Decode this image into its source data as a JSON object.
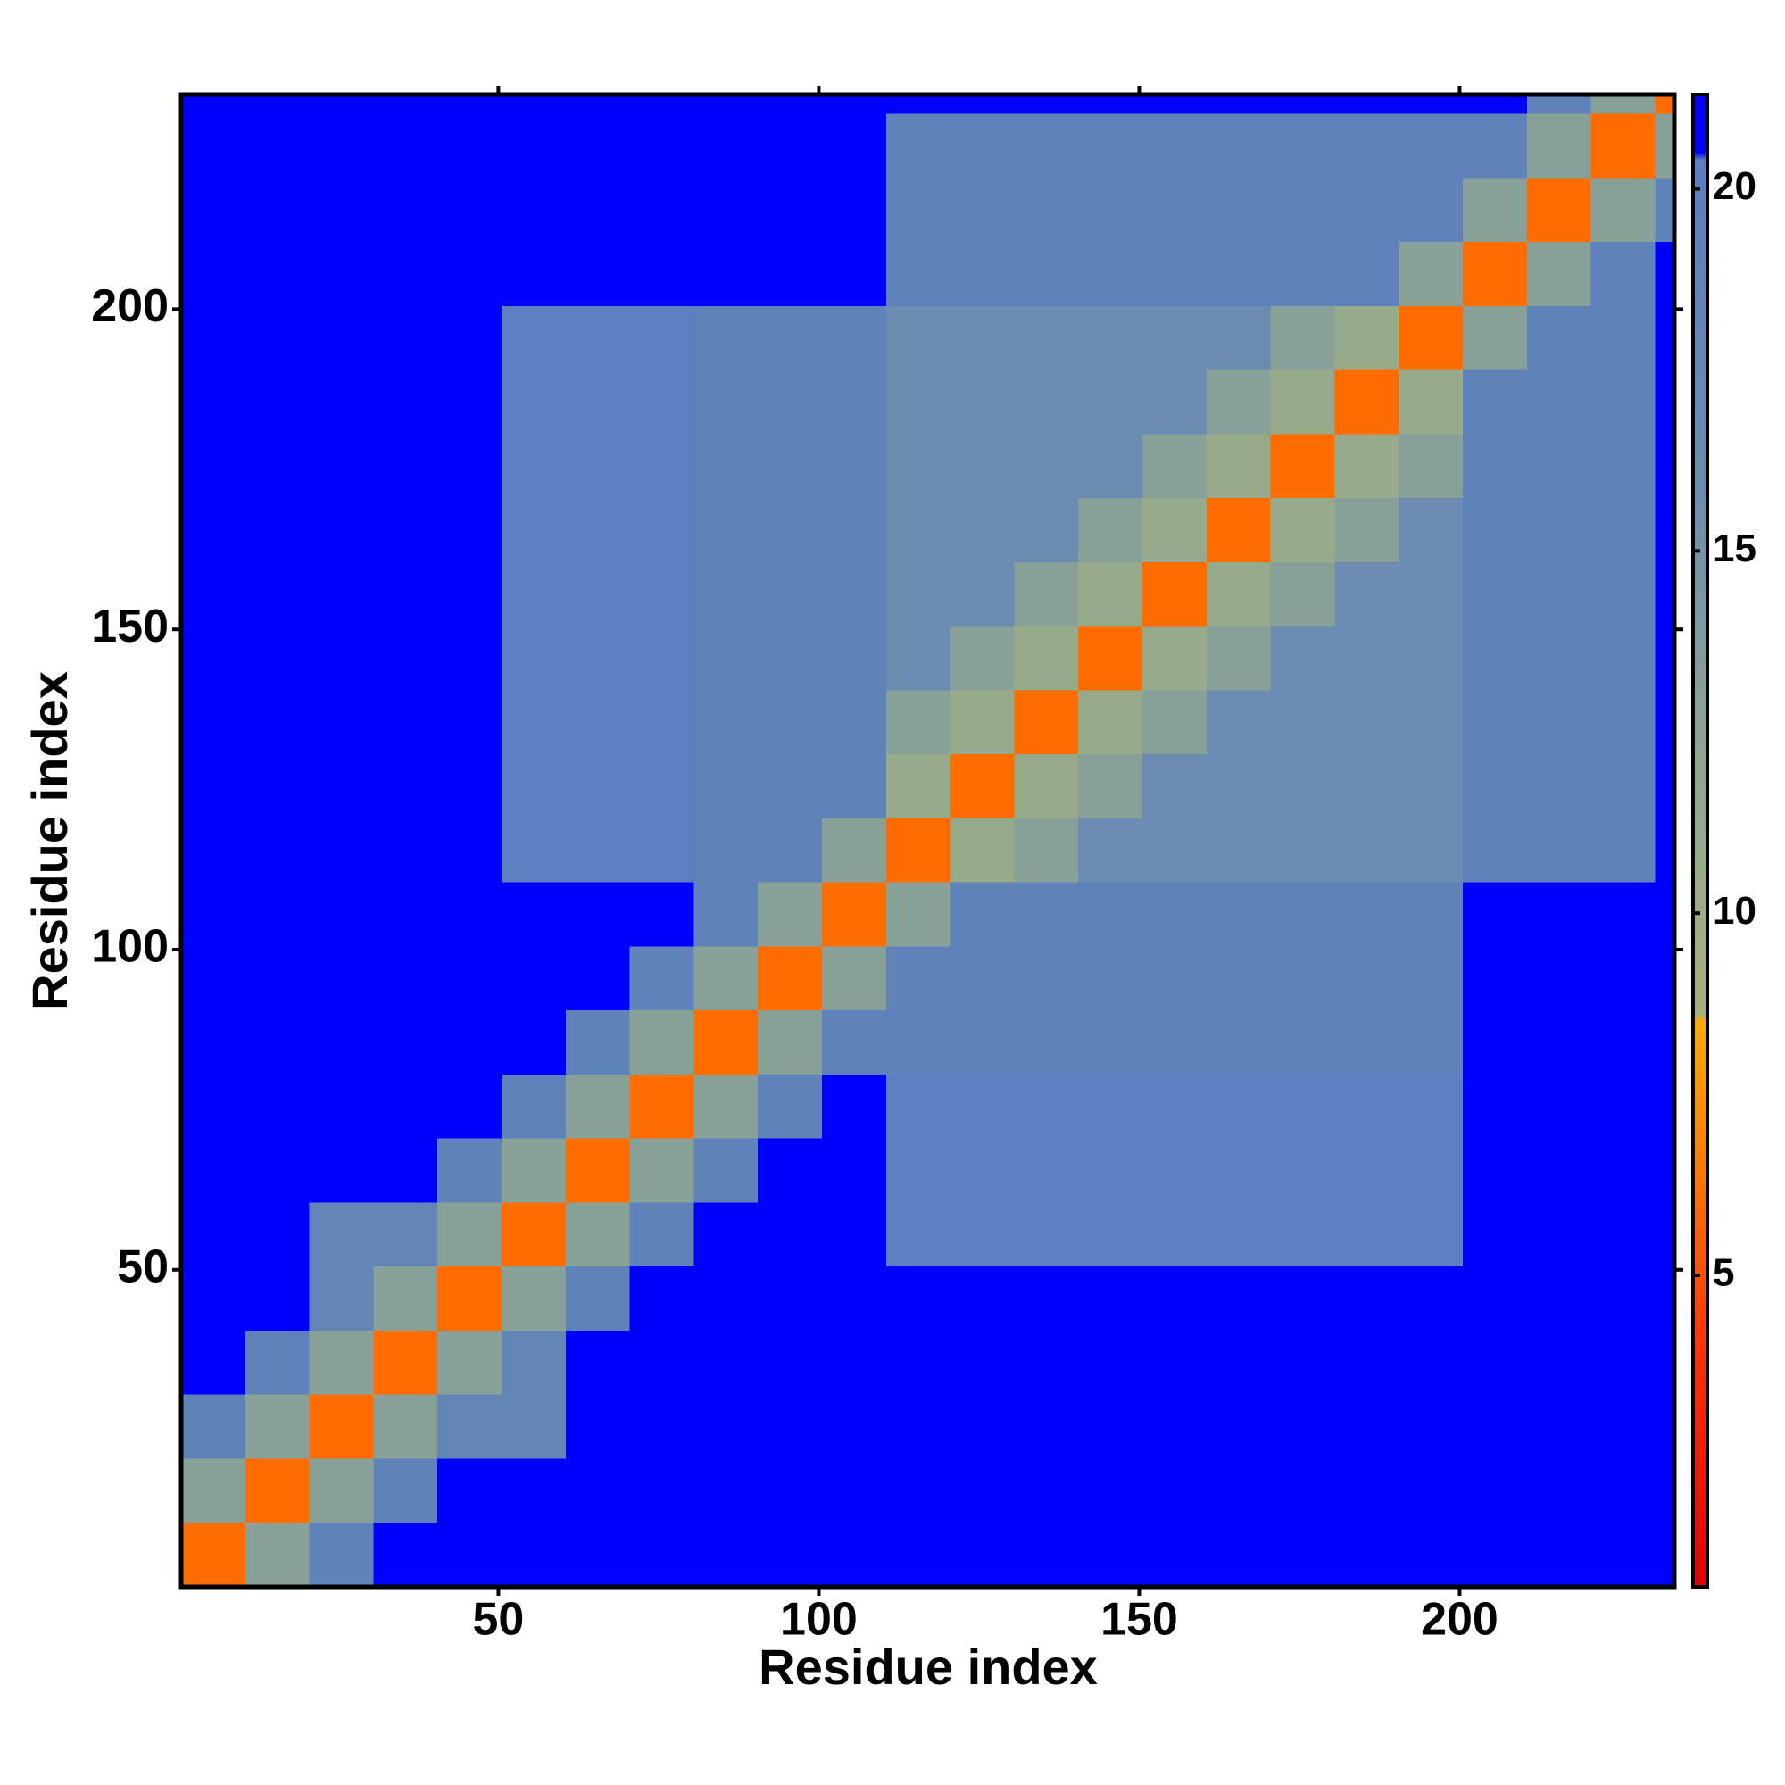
{
  "chart_data": {
    "type": "heatmap",
    "xlabel": "Residue index",
    "ylabel": "Residue index",
    "x_bins": [
      0.5,
      10.5,
      20.5,
      30.5,
      40.5,
      50.5,
      60.5,
      70.5,
      80.5,
      90.5,
      100.5,
      110.5,
      120.5,
      130.5,
      140.5,
      150.5,
      160.5,
      170.5,
      180.5,
      190.5,
      200.5,
      210.5,
      220.5,
      230.5,
      233.5
    ],
    "y_bins": [
      0.5,
      10.5,
      20.5,
      30.5,
      40.5,
      50.5,
      60.5,
      70.5,
      80.5,
      90.5,
      100.5,
      110.5,
      120.5,
      130.5,
      140.5,
      150.5,
      160.5,
      170.5,
      180.5,
      190.5,
      200.5,
      210.5,
      220.5,
      230.5,
      233.5
    ],
    "values": [
      [
        6,
        13,
        19,
        21,
        21,
        21,
        21,
        21,
        21,
        21,
        21,
        21,
        21,
        21,
        21,
        21,
        21,
        21,
        21,
        21,
        21,
        21,
        21,
        21
      ],
      [
        13,
        6,
        13,
        19,
        21,
        21,
        21,
        21,
        21,
        21,
        21,
        21,
        21,
        21,
        21,
        21,
        21,
        21,
        21,
        21,
        21,
        21,
        21,
        21
      ],
      [
        19,
        13,
        6,
        13,
        18,
        18,
        21,
        21,
        21,
        21,
        21,
        21,
        21,
        21,
        21,
        21,
        21,
        21,
        21,
        21,
        21,
        21,
        21,
        21
      ],
      [
        21,
        19,
        13,
        6,
        13,
        18,
        21,
        21,
        21,
        21,
        21,
        21,
        21,
        21,
        21,
        21,
        21,
        21,
        21,
        21,
        21,
        21,
        21,
        21
      ],
      [
        21,
        21,
        18,
        13,
        6,
        13,
        19,
        21,
        21,
        21,
        21,
        21,
        21,
        21,
        21,
        21,
        21,
        21,
        21,
        21,
        21,
        21,
        21,
        21
      ],
      [
        21,
        21,
        18,
        18,
        13,
        6,
        13,
        19,
        21,
        21,
        21,
        20,
        20,
        20,
        20,
        20,
        20,
        20,
        20,
        20,
        21,
        21,
        21,
        21
      ],
      [
        21,
        21,
        21,
        21,
        19,
        13,
        6,
        13,
        19,
        21,
        21,
        20,
        20,
        20,
        20,
        20,
        20,
        20,
        20,
        20,
        21,
        21,
        21,
        21
      ],
      [
        21,
        21,
        21,
        21,
        21,
        19,
        13,
        6,
        13,
        19,
        21,
        20,
        20,
        20,
        20,
        20,
        20,
        20,
        20,
        20,
        21,
        21,
        21,
        21
      ],
      [
        21,
        21,
        21,
        21,
        21,
        21,
        19,
        13,
        6,
        13,
        19,
        19,
        19,
        19,
        19,
        19,
        19,
        19,
        19,
        19,
        21,
        21,
        21,
        21
      ],
      [
        21,
        21,
        21,
        21,
        21,
        21,
        21,
        19,
        13,
        6,
        13,
        19,
        19,
        19,
        19,
        19,
        19,
        19,
        19,
        19,
        21,
        21,
        21,
        21
      ],
      [
        21,
        21,
        21,
        21,
        21,
        21,
        21,
        21,
        19,
        13,
        6,
        13,
        19,
        19,
        19,
        19,
        19,
        19,
        19,
        19,
        21,
        21,
        21,
        21
      ],
      [
        21,
        21,
        21,
        21,
        21,
        20,
        20,
        20,
        19,
        19,
        13,
        6,
        11,
        13,
        16,
        16,
        16,
        16,
        16,
        16,
        19,
        19,
        19,
        21
      ],
      [
        21,
        21,
        21,
        21,
        21,
        20,
        20,
        20,
        19,
        19,
        19,
        11,
        6,
        11,
        13,
        16,
        16,
        16,
        16,
        16,
        19,
        19,
        19,
        21
      ],
      [
        21,
        21,
        21,
        21,
        21,
        20,
        20,
        20,
        19,
        19,
        19,
        13,
        11,
        6,
        11,
        13,
        16,
        16,
        16,
        16,
        19,
        19,
        19,
        21
      ],
      [
        21,
        21,
        21,
        21,
        21,
        20,
        20,
        20,
        19,
        19,
        19,
        16,
        13,
        11,
        6,
        11,
        13,
        16,
        16,
        16,
        19,
        19,
        19,
        21
      ],
      [
        21,
        21,
        21,
        21,
        21,
        20,
        20,
        20,
        19,
        19,
        19,
        16,
        16,
        13,
        11,
        6,
        11,
        13,
        16,
        16,
        19,
        19,
        19,
        21
      ],
      [
        21,
        21,
        21,
        21,
        21,
        20,
        20,
        20,
        19,
        19,
        19,
        16,
        16,
        16,
        13,
        11,
        6,
        11,
        13,
        16,
        19,
        19,
        19,
        21
      ],
      [
        21,
        21,
        21,
        21,
        21,
        20,
        20,
        20,
        19,
        19,
        19,
        16,
        16,
        16,
        16,
        13,
        11,
        6,
        11,
        13,
        19,
        19,
        19,
        21
      ],
      [
        21,
        21,
        21,
        21,
        21,
        20,
        20,
        20,
        19,
        19,
        19,
        16,
        16,
        16,
        16,
        16,
        13,
        11,
        6,
        11,
        19,
        19,
        19,
        21
      ],
      [
        21,
        21,
        21,
        21,
        21,
        20,
        20,
        20,
        19,
        19,
        19,
        16,
        16,
        16,
        16,
        16,
        16,
        13,
        11,
        6,
        13,
        19,
        19,
        21
      ],
      [
        21,
        21,
        21,
        21,
        21,
        21,
        21,
        21,
        21,
        21,
        21,
        19,
        19,
        19,
        19,
        19,
        19,
        19,
        19,
        13,
        6,
        13,
        19,
        21
      ],
      [
        21,
        21,
        21,
        21,
        21,
        21,
        21,
        21,
        21,
        21,
        21,
        19,
        19,
        19,
        19,
        19,
        19,
        19,
        19,
        19,
        13,
        6,
        13,
        19
      ],
      [
        21,
        21,
        21,
        21,
        21,
        21,
        21,
        21,
        21,
        21,
        21,
        19,
        19,
        19,
        19,
        19,
        19,
        19,
        19,
        19,
        19,
        13,
        6,
        13
      ],
      [
        21,
        21,
        21,
        21,
        21,
        21,
        21,
        21,
        21,
        21,
        21,
        21,
        21,
        21,
        21,
        21,
        21,
        21,
        21,
        21,
        21,
        19,
        13,
        6
      ]
    ],
    "xlim": [
      0.5,
      233.5
    ],
    "ylim": [
      0.5,
      233.5
    ],
    "xticks": [
      50,
      100,
      150,
      200
    ],
    "yticks": [
      50,
      100,
      150,
      200
    ],
    "colorbar": {
      "lim": [
        0.7,
        21.3
      ],
      "ticks": [
        5,
        10,
        15,
        20
      ],
      "stops": [
        {
          "value": 0.7,
          "color": "#e00000"
        },
        {
          "value": 4,
          "color": "#ff3300"
        },
        {
          "value": 7,
          "color": "#ff8800"
        },
        {
          "value": 8.5,
          "color": "#ffaa00"
        },
        {
          "value": 8.6,
          "color": "#a8b07a"
        },
        {
          "value": 12,
          "color": "#90a890"
        },
        {
          "value": 16,
          "color": "#6a8cb0"
        },
        {
          "value": 20.4,
          "color": "#5a7ec0"
        },
        {
          "value": 20.5,
          "color": "#0000ff"
        },
        {
          "value": 21.3,
          "color": "#0000ff"
        }
      ]
    }
  }
}
